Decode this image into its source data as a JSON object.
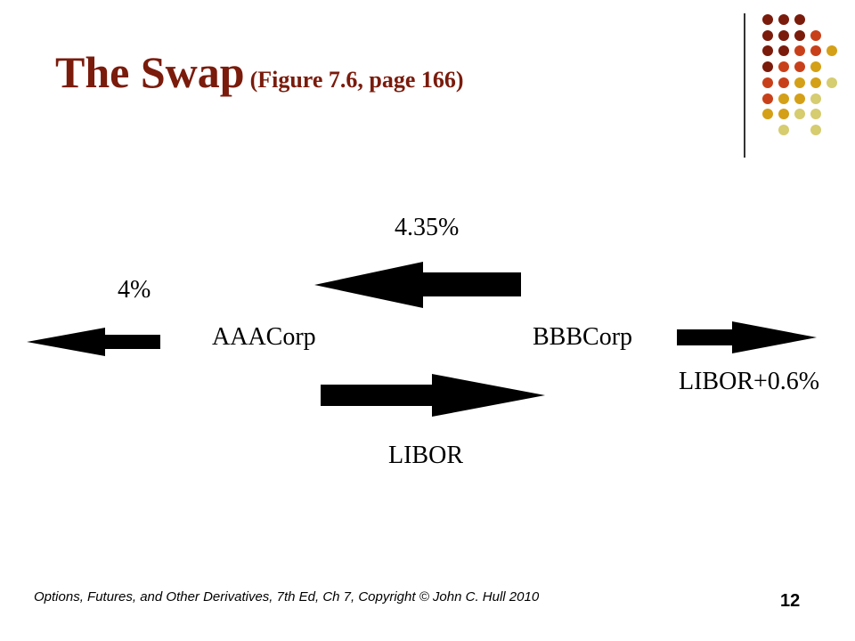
{
  "slide": {
    "title_main": "The Swap",
    "title_sub": "(Figure 7.6, page 166)",
    "page_number": "12",
    "footer": "Options, Futures, and Other Derivatives, 7th Ed, Ch 7, Copyright © John C. Hull 2010"
  },
  "diagram": {
    "party_left": "AAACorp",
    "party_right": "BBBCorp",
    "fixed_rate_swap": "4.35%",
    "floating_rate_swap": "LIBOR",
    "fixed_rate_outside": "4%",
    "floating_rate_outside": "LIBOR+0.6%"
  },
  "colors": {
    "title": "#7a1b0c",
    "dot_dark_red": "#7a1b0c",
    "dot_orange": "#c8401a",
    "dot_gold": "#d4a017",
    "dot_pale": "#d6cc70"
  }
}
